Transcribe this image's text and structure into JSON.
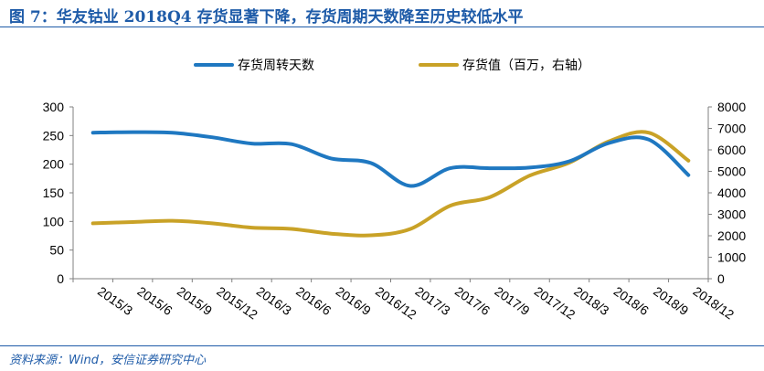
{
  "figure": {
    "title": "图 7：华友钴业 2018Q4 存货显著下降，存货周期天数降至历史较低水平",
    "source": "资料来源：Wind，安信证券研究中心"
  },
  "chart_data": {
    "type": "line",
    "x": [
      "2015/3",
      "2015/6",
      "2015/9",
      "2015/12",
      "2016/3",
      "2016/6",
      "2016/9",
      "2016/12",
      "2017/3",
      "2017/6",
      "2017/9",
      "2017/12",
      "2018/3",
      "2018/6",
      "2018/9",
      "2018/12"
    ],
    "legend_position": "top",
    "grid": false,
    "series": [
      {
        "name": "存货周转天数",
        "axis": "left",
        "color": "#1f78c1",
        "values": [
          255,
          256,
          255,
          247,
          236,
          235,
          210,
          202,
          162,
          193,
          193,
          194,
          205,
          237,
          243,
          181
        ]
      },
      {
        "name": "存货值（百万，右轴）",
        "axis": "right",
        "color": "#c9a227",
        "values": [
          2580,
          2640,
          2700,
          2580,
          2380,
          2320,
          2100,
          2020,
          2320,
          3400,
          3800,
          4800,
          5400,
          6400,
          6800,
          5500
        ]
      }
    ],
    "y_left": {
      "ylim": [
        0,
        300
      ],
      "ticks": [
        "0",
        "50",
        "100",
        "150",
        "200",
        "250",
        "300"
      ]
    },
    "y_right": {
      "ylim": [
        0,
        8000
      ],
      "ticks": [
        "0",
        "1000",
        "2000",
        "3000",
        "4000",
        "5000",
        "6000",
        "7000",
        "8000"
      ]
    }
  }
}
